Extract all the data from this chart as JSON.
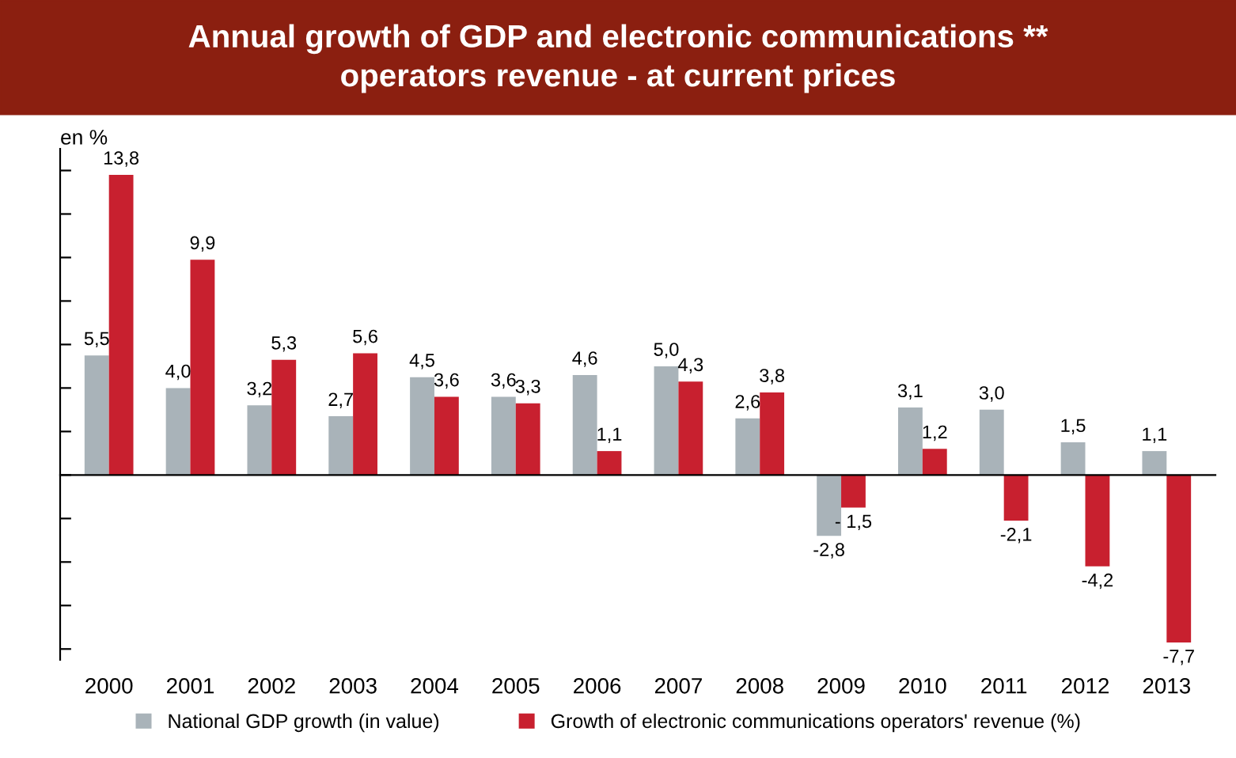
{
  "chart_data": {
    "type": "bar",
    "title": "Annual growth of GDP and electronic communications **\noperators revenue - at current prices",
    "ylabel": "en %",
    "categories": [
      "2000",
      "2001",
      "2002",
      "2003",
      "2004",
      "2005",
      "2006",
      "2007",
      "2008",
      "2009",
      "2010",
      "2011",
      "2012",
      "2013"
    ],
    "series": [
      {
        "name": "National GDP growth (in value)",
        "color": "#a9b3b9",
        "values": [
          5.5,
          4.0,
          3.2,
          2.7,
          4.5,
          3.6,
          4.6,
          5.0,
          2.6,
          -2.8,
          3.1,
          3.0,
          1.5,
          1.1
        ],
        "value_labels": [
          "5,5",
          "4,0",
          "3,2",
          "2,7",
          "4,5",
          "3,6",
          "4,6",
          "5,0",
          "2,6",
          "-2,8",
          "3,1",
          "3,0",
          "1,5",
          "1,1"
        ]
      },
      {
        "name": "Growth of electronic communications operators' revenue (%)",
        "color": "#c8202f",
        "values": [
          13.8,
          9.9,
          5.3,
          5.6,
          3.6,
          3.3,
          1.1,
          4.3,
          3.8,
          -1.5,
          1.2,
          -2.1,
          -4.2,
          -7.7
        ],
        "value_labels": [
          "13,8",
          "9,9",
          "5,3",
          "5,6",
          "3,6",
          "3,3",
          "1,1",
          "4,3",
          "3,8",
          "- 1,5",
          "1,2",
          "-2,1",
          "-4,2",
          "-7,7"
        ]
      }
    ],
    "ylim": [
      -8.5,
      15
    ],
    "yticks": [
      {
        "value": -8,
        "label": null
      },
      {
        "value": -6,
        "label": null
      },
      {
        "value": -4,
        "label": null
      },
      {
        "value": -2,
        "label": null
      },
      {
        "value": 0,
        "label": null
      },
      {
        "value": 2,
        "label": null
      },
      {
        "value": 4,
        "label": null
      },
      {
        "value": 6,
        "label": null
      },
      {
        "value": 8,
        "label": null
      },
      {
        "value": 10,
        "label": null
      },
      {
        "value": 12,
        "label": null
      },
      {
        "value": 14,
        "label": null
      }
    ],
    "legend": "bottom left",
    "grid": false
  }
}
